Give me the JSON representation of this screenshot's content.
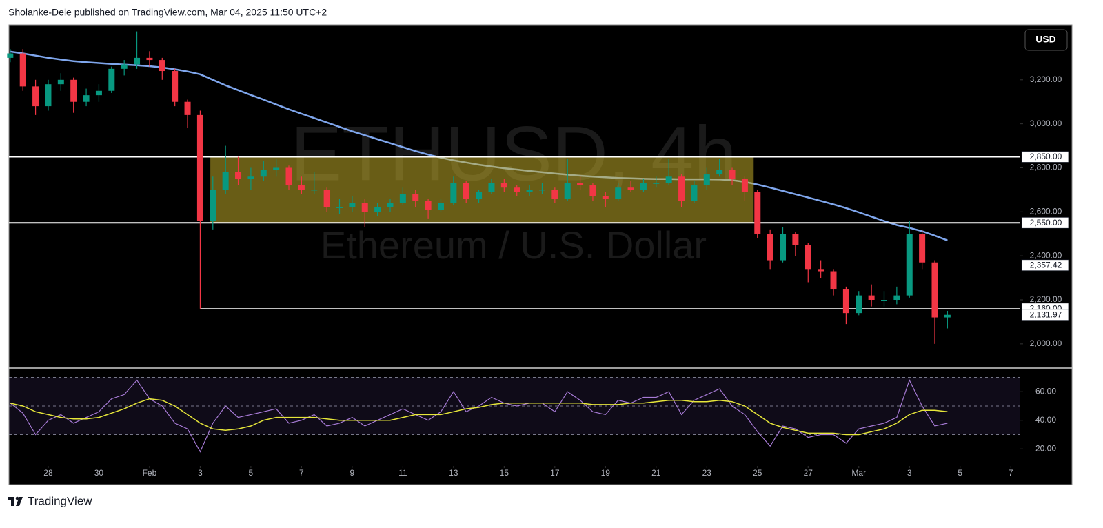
{
  "header": {
    "text": "Sholanke-Dele published on TradingView.com, Mar 04, 2025 11:50 UTC+2",
    "currency": "USD"
  },
  "footer": {
    "brand": "TradingView"
  },
  "chart_data": {
    "type": "candlestick",
    "symbol": "ETHUSD, 4h",
    "description": "Ethereum / U.S. Dollar",
    "up_color": "#089981",
    "down_color": "#f23645",
    "xlim": [
      -0.1,
      79.75
    ],
    "xticks": [
      {
        "value": 3,
        "label": "28"
      },
      {
        "value": 7,
        "label": "30"
      },
      {
        "value": 11,
        "label": "Feb"
      },
      {
        "value": 15,
        "label": "3"
      },
      {
        "value": 19,
        "label": "5"
      },
      {
        "value": 23,
        "label": "7"
      },
      {
        "value": 27,
        "label": "9"
      },
      {
        "value": 31,
        "label": "11"
      },
      {
        "value": 35,
        "label": "13"
      },
      {
        "value": 39,
        "label": "15"
      },
      {
        "value": 43,
        "label": "17"
      },
      {
        "value": 47,
        "label": "19"
      },
      {
        "value": 51,
        "label": "21"
      },
      {
        "value": 55,
        "label": "23"
      },
      {
        "value": 59,
        "label": "25"
      },
      {
        "value": 63,
        "label": "27"
      },
      {
        "value": 67,
        "label": "Mar"
      },
      {
        "value": 71,
        "label": "3"
      },
      {
        "value": 75,
        "label": "5"
      },
      {
        "value": 79,
        "label": "7"
      }
    ],
    "ylim": [
      1893,
      3450
    ],
    "yticks": [
      {
        "value": 2000,
        "label": "2,000.00"
      },
      {
        "value": 2200,
        "label": "2,200.00"
      },
      {
        "value": 2400,
        "label": "2,400.00"
      },
      {
        "value": 2600,
        "label": "2,600.00"
      },
      {
        "value": 2800,
        "label": "2,800.00"
      },
      {
        "value": 3000,
        "label": "3,000.00"
      },
      {
        "value": 3200,
        "label": "3,200.00"
      }
    ],
    "ohlc": [
      [
        3300,
        3340,
        3280,
        3320
      ],
      [
        3320,
        3340,
        3150,
        3170
      ],
      [
        3170,
        3200,
        3040,
        3080
      ],
      [
        3080,
        3200,
        3060,
        3180
      ],
      [
        3180,
        3230,
        3150,
        3200
      ],
      [
        3200,
        3210,
        3050,
        3100
      ],
      [
        3100,
        3160,
        3080,
        3130
      ],
      [
        3130,
        3180,
        3100,
        3150
      ],
      [
        3150,
        3260,
        3140,
        3250
      ],
      [
        3250,
        3290,
        3220,
        3270
      ],
      [
        3270,
        3420,
        3250,
        3300
      ],
      [
        3300,
        3330,
        3260,
        3290
      ],
      [
        3290,
        3300,
        3200,
        3240
      ],
      [
        3240,
        3250,
        3080,
        3100
      ],
      [
        3100,
        3110,
        2980,
        3040
      ],
      [
        3040,
        3060,
        2160,
        2560
      ],
      [
        2560,
        2760,
        2520,
        2700
      ],
      [
        2700,
        2900,
        2680,
        2780
      ],
      [
        2780,
        2850,
        2720,
        2750
      ],
      [
        2750,
        2800,
        2700,
        2760
      ],
      [
        2760,
        2830,
        2740,
        2790
      ],
      [
        2790,
        2840,
        2760,
        2800
      ],
      [
        2800,
        2810,
        2700,
        2720
      ],
      [
        2720,
        2760,
        2680,
        2700
      ],
      [
        2700,
        2780,
        2680,
        2700
      ],
      [
        2700,
        2710,
        2600,
        2620
      ],
      [
        2620,
        2660,
        2590,
        2620
      ],
      [
        2620,
        2670,
        2600,
        2640
      ],
      [
        2640,
        2660,
        2530,
        2600
      ],
      [
        2600,
        2640,
        2580,
        2620
      ],
      [
        2620,
        2660,
        2600,
        2640
      ],
      [
        2640,
        2710,
        2630,
        2680
      ],
      [
        2680,
        2700,
        2620,
        2650
      ],
      [
        2650,
        2660,
        2570,
        2610
      ],
      [
        2610,
        2660,
        2600,
        2640
      ],
      [
        2640,
        2760,
        2630,
        2730
      ],
      [
        2730,
        2740,
        2640,
        2660
      ],
      [
        2660,
        2700,
        2640,
        2690
      ],
      [
        2690,
        2750,
        2680,
        2730
      ],
      [
        2730,
        2750,
        2690,
        2710
      ],
      [
        2710,
        2720,
        2670,
        2690
      ],
      [
        2690,
        2720,
        2670,
        2700
      ],
      [
        2700,
        2730,
        2680,
        2700
      ],
      [
        2700,
        2710,
        2640,
        2660
      ],
      [
        2660,
        2840,
        2650,
        2730
      ],
      [
        2730,
        2760,
        2700,
        2720
      ],
      [
        2720,
        2730,
        2650,
        2670
      ],
      [
        2670,
        2690,
        2620,
        2660
      ],
      [
        2660,
        2730,
        2650,
        2710
      ],
      [
        2710,
        2740,
        2690,
        2700
      ],
      [
        2700,
        2750,
        2690,
        2730
      ],
      [
        2730,
        2760,
        2710,
        2730
      ],
      [
        2730,
        2840,
        2720,
        2760
      ],
      [
        2760,
        2770,
        2620,
        2650
      ],
      [
        2650,
        2740,
        2640,
        2720
      ],
      [
        2720,
        2800,
        2700,
        2770
      ],
      [
        2770,
        2840,
        2760,
        2790
      ],
      [
        2790,
        2800,
        2720,
        2750
      ],
      [
        2750,
        2760,
        2650,
        2690
      ],
      [
        2690,
        2700,
        2480,
        2500
      ],
      [
        2500,
        2520,
        2340,
        2380
      ],
      [
        2380,
        2530,
        2370,
        2500
      ],
      [
        2500,
        2510,
        2400,
        2450
      ],
      [
        2450,
        2460,
        2280,
        2340
      ],
      [
        2340,
        2380,
        2300,
        2330
      ],
      [
        2330,
        2340,
        2220,
        2250
      ],
      [
        2250,
        2260,
        2090,
        2140
      ],
      [
        2140,
        2240,
        2130,
        2220
      ],
      [
        2220,
        2270,
        2170,
        2200
      ],
      [
        2200,
        2240,
        2170,
        2200
      ],
      [
        2200,
        2260,
        2180,
        2220
      ],
      [
        2220,
        2560,
        2210,
        2500
      ],
      [
        2500,
        2520,
        2340,
        2370
      ],
      [
        2370,
        2380,
        2000,
        2120
      ],
      [
        2120,
        2150,
        2070,
        2131.97
      ]
    ],
    "ma": {
      "color": "#7fa6ec",
      "values": [
        3328,
        3320,
        3310,
        3300,
        3292,
        3285,
        3280,
        3276,
        3272,
        3269,
        3266,
        3262,
        3256,
        3248,
        3238,
        3225,
        3200,
        3175,
        3153,
        3131,
        3110,
        3088,
        3066,
        3046,
        3026,
        3006,
        2986,
        2966,
        2948,
        2930,
        2912,
        2894,
        2876,
        2860,
        2846,
        2834,
        2824,
        2814,
        2806,
        2798,
        2792,
        2786,
        2780,
        2774,
        2769,
        2764,
        2760,
        2757,
        2754,
        2752,
        2750,
        2749,
        2749,
        2748,
        2748,
        2748,
        2747,
        2744,
        2736,
        2724,
        2710,
        2695,
        2680,
        2665,
        2650,
        2634,
        2617,
        2598,
        2578,
        2558,
        2540,
        2527,
        2512,
        2492,
        2470
      ]
    },
    "zone": {
      "low": 2550,
      "high": 2850,
      "from": 15.8,
      "to": 58.7,
      "color": "#c9b22a"
    },
    "levels": [
      {
        "value": 2850,
        "label": "2,850.00"
      },
      {
        "value": 2550,
        "label": "2,550.00"
      },
      {
        "value": 2160,
        "label": "2,160.00",
        "from": 15
      }
    ],
    "price_tags": [
      {
        "value": 2357.42,
        "label": "2,357.42"
      },
      {
        "value": 2131.97,
        "label": "2,131.97"
      }
    ],
    "rsi": {
      "color": "#a77bd6",
      "ma_color": "#e6e63a",
      "band_color": "#7e57c2",
      "ylim": [
        10,
        76
      ],
      "yticks": [
        {
          "value": 20,
          "label": "20.00"
        },
        {
          "value": 40,
          "label": "40.00"
        },
        {
          "value": 60,
          "label": "60.00"
        }
      ],
      "bands": [
        30,
        50,
        70
      ],
      "values": [
        52,
        45,
        30,
        40,
        44,
        38,
        42,
        46,
        55,
        58,
        68,
        55,
        50,
        38,
        34,
        18,
        38,
        50,
        42,
        44,
        46,
        48,
        38,
        40,
        44,
        36,
        38,
        42,
        36,
        40,
        44,
        48,
        44,
        40,
        46,
        60,
        46,
        50,
        56,
        52,
        50,
        52,
        52,
        46,
        60,
        54,
        46,
        44,
        54,
        52,
        56,
        56,
        60,
        44,
        54,
        58,
        62,
        50,
        44,
        32,
        22,
        36,
        34,
        28,
        30,
        30,
        24,
        34,
        36,
        38,
        42,
        68,
        50,
        36,
        38
      ],
      "ma_values": [
        52,
        50,
        46,
        44,
        42,
        41,
        41,
        42,
        45,
        48,
        52,
        55,
        54,
        50,
        44,
        38,
        34,
        33,
        34,
        36,
        40,
        42,
        42,
        42,
        42,
        41,
        40,
        40,
        40,
        40,
        40,
        42,
        44,
        44,
        44,
        46,
        48,
        49,
        51,
        52,
        52,
        52,
        52,
        52,
        52,
        52,
        51,
        51,
        51,
        52,
        52,
        53,
        54,
        54,
        53,
        53,
        54,
        53,
        50,
        44,
        38,
        35,
        33,
        31,
        31,
        31,
        30,
        30,
        32,
        34,
        38,
        44,
        47,
        47,
        46
      ]
    }
  }
}
